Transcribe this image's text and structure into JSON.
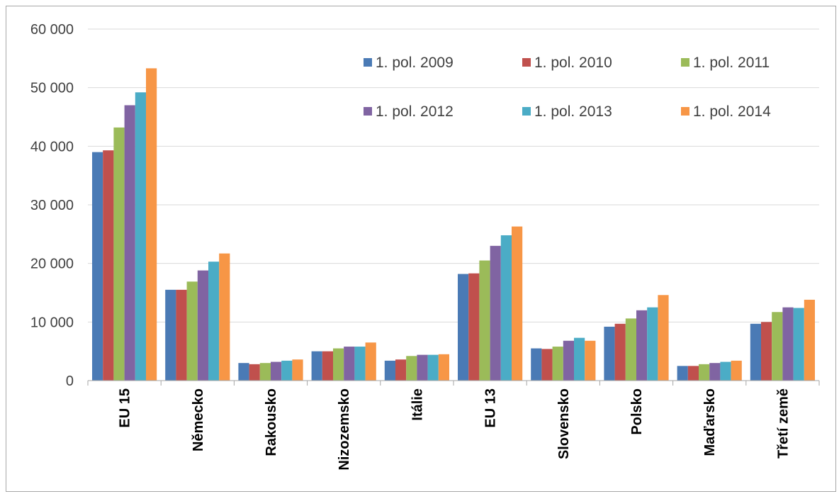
{
  "chart_data": {
    "type": "bar",
    "title": "",
    "xlabel": "",
    "ylabel": "",
    "ylim": [
      0,
      60000
    ],
    "yticks": [
      0,
      10000,
      20000,
      30000,
      40000,
      50000,
      60000
    ],
    "ytick_labels": [
      "0",
      "10 000",
      "20 000",
      "30 000",
      "40 000",
      "50 000",
      "60 000"
    ],
    "grid": true,
    "legend_position": "top-right",
    "categories": [
      "EU 15",
      "Německo",
      "Rakousko",
      "Nizozemsko",
      "Itálie",
      "EU 13",
      "Slovensko",
      "Polsko",
      "Maďarsko",
      "Třetí země"
    ],
    "series": [
      {
        "name": "1. pol. 2009",
        "color": "#4a7ab5",
        "values": [
          39000,
          15500,
          3000,
          5000,
          3400,
          18200,
          5500,
          9200,
          2500,
          9700
        ]
      },
      {
        "name": "1. pol. 2010",
        "color": "#c0504d",
        "values": [
          39300,
          15500,
          2800,
          5000,
          3600,
          18300,
          5400,
          9700,
          2500,
          10000
        ]
      },
      {
        "name": "1. pol. 2011",
        "color": "#9bbb59",
        "values": [
          43200,
          16900,
          3000,
          5500,
          4200,
          20500,
          5800,
          10600,
          2800,
          11700
        ]
      },
      {
        "name": "1. pol. 2012",
        "color": "#8064a2",
        "values": [
          47000,
          18800,
          3200,
          5800,
          4400,
          23000,
          6800,
          12000,
          3000,
          12500
        ]
      },
      {
        "name": "1. pol. 2013",
        "color": "#4bacc6",
        "values": [
          49200,
          20300,
          3400,
          5800,
          4400,
          24800,
          7300,
          12500,
          3200,
          12400
        ]
      },
      {
        "name": "1. pol. 2014",
        "color": "#f79646",
        "values": [
          53300,
          21700,
          3600,
          6500,
          4500,
          26300,
          6800,
          14600,
          3400,
          13800
        ]
      }
    ]
  }
}
